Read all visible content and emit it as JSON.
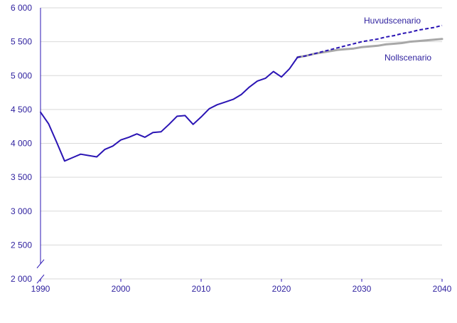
{
  "chart_data": {
    "type": "line",
    "title": "",
    "xlabel": "",
    "ylabel": "",
    "xlim": [
      1990,
      2040
    ],
    "ylim": [
      2000,
      6000
    ],
    "axis_break": true,
    "grid": "horizontal",
    "x_ticks": [
      "1990",
      "2000",
      "2010",
      "2020",
      "2030",
      "2040"
    ],
    "y_ticks": [
      "2 000",
      "2 500",
      "3 000",
      "3 500",
      "4 000",
      "4 500",
      "5 000",
      "5 500",
      "6 000"
    ],
    "colors": {
      "historical": "#2a14b4",
      "huvudscenario": "#2a14b4",
      "nollscenario": "#a8a8a8",
      "grid": "#d9d9d9",
      "axis": "#2a14b4",
      "text": "#2d1f9e"
    },
    "series": [
      {
        "key": "historical",
        "style": "solid",
        "x": [
          1990,
          1991,
          1992,
          1993,
          1994,
          1995,
          1996,
          1997,
          1998,
          1999,
          2000,
          2001,
          2002,
          2003,
          2004,
          2005,
          2006,
          2007,
          2008,
          2009,
          2010,
          2011,
          2012,
          2013,
          2014,
          2015,
          2016,
          2017,
          2018,
          2019,
          2020,
          2021,
          2022
        ],
        "values": [
          4460,
          4290,
          4020,
          3740,
          3790,
          3840,
          3820,
          3800,
          3910,
          3960,
          4050,
          4090,
          4140,
          4090,
          4160,
          4170,
          4280,
          4400,
          4410,
          4280,
          4390,
          4510,
          4570,
          4610,
          4650,
          4720,
          4830,
          4920,
          4960,
          5060,
          4980,
          5100,
          5270
        ]
      },
      {
        "key": "huvudscenario",
        "name": "Huvudscenario",
        "style": "dashed",
        "x": [
          2022,
          2023,
          2024,
          2025,
          2026,
          2027,
          2028,
          2029,
          2030,
          2031,
          2032,
          2033,
          2034,
          2035,
          2036,
          2037,
          2038,
          2039,
          2040
        ],
        "values": [
          5270,
          5290,
          5320,
          5350,
          5380,
          5410,
          5440,
          5470,
          5500,
          5520,
          5540,
          5570,
          5590,
          5620,
          5640,
          5670,
          5690,
          5710,
          5740
        ]
      },
      {
        "key": "nollscenario",
        "name": "Nollscenario",
        "style": "solid",
        "x": [
          2022,
          2023,
          2024,
          2025,
          2026,
          2027,
          2028,
          2029,
          2030,
          2031,
          2032,
          2033,
          2034,
          2035,
          2036,
          2037,
          2038,
          2039,
          2040
        ],
        "values": [
          5270,
          5290,
          5320,
          5340,
          5360,
          5380,
          5390,
          5400,
          5420,
          5430,
          5440,
          5460,
          5470,
          5480,
          5500,
          5510,
          5520,
          5530,
          5540
        ]
      }
    ]
  }
}
